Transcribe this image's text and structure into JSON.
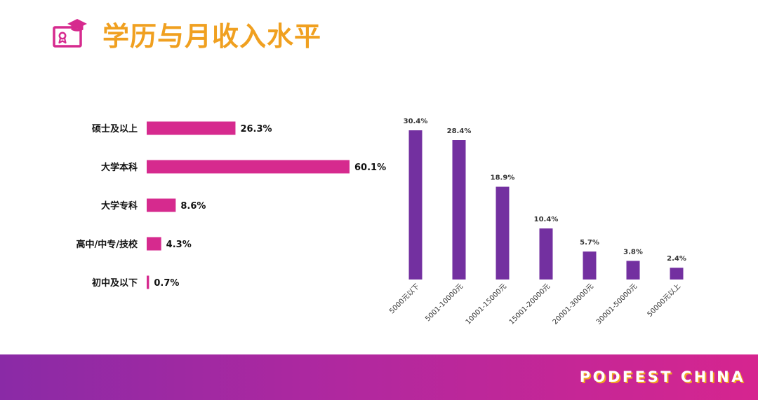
{
  "header": {
    "title": "学历与月收入水平",
    "icon": "certificate-graduation-cap-icon"
  },
  "footer": {
    "brand": "PODFEST CHINA"
  },
  "colors": {
    "title": "#f0a020",
    "education_bar": "#d62a8e",
    "income_bar": "#7330a0",
    "icon": "#d62a8e",
    "footer_start": "#8a2aa6",
    "footer_end": "#d6258f"
  },
  "chart_data": [
    {
      "type": "bar",
      "orientation": "horizontal",
      "categories": [
        "硕士及以上",
        "大学本科",
        "大学专科",
        "高中/中专/技校",
        "初中及以下"
      ],
      "values": [
        26.3,
        60.1,
        8.6,
        4.3,
        0.7
      ],
      "data_labels": [
        "26.3%",
        "60.1%",
        "8.6%",
        "4.3%",
        "0.7%"
      ],
      "unit": "%",
      "grid": false,
      "legend": "none"
    },
    {
      "type": "bar",
      "orientation": "vertical",
      "categories": [
        "5000元以下",
        "5001-10000元",
        "10001-15000元",
        "15001-20000元",
        "20001-30000元",
        "30001-50000元",
        "50000元以上"
      ],
      "values": [
        30.4,
        28.4,
        18.9,
        10.4,
        5.7,
        3.8,
        2.4
      ],
      "data_labels": [
        "30.4%",
        "28.4%",
        "18.9%",
        "10.4%",
        "5.7%",
        "3.8%",
        "2.4%"
      ],
      "unit": "%",
      "tick_label_rotation": "diagonal",
      "grid": false,
      "legend": "none"
    }
  ]
}
